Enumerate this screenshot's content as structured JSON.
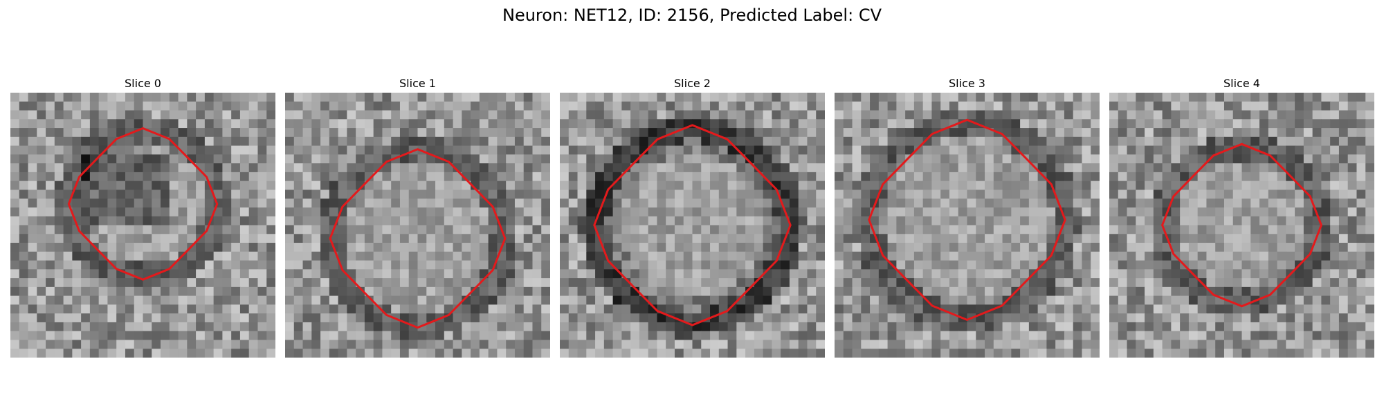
{
  "figure": {
    "title": "Neuron: NET12, ID: 2156, Predicted Label: CV"
  },
  "panels": [
    {
      "label": "Slice 0"
    },
    {
      "label": "Slice 1"
    },
    {
      "label": "Slice 2"
    },
    {
      "label": "Slice 3"
    },
    {
      "label": "Slice 4"
    }
  ],
  "colors": {
    "contour": "#e31a1c",
    "background": "#ffffff"
  }
}
